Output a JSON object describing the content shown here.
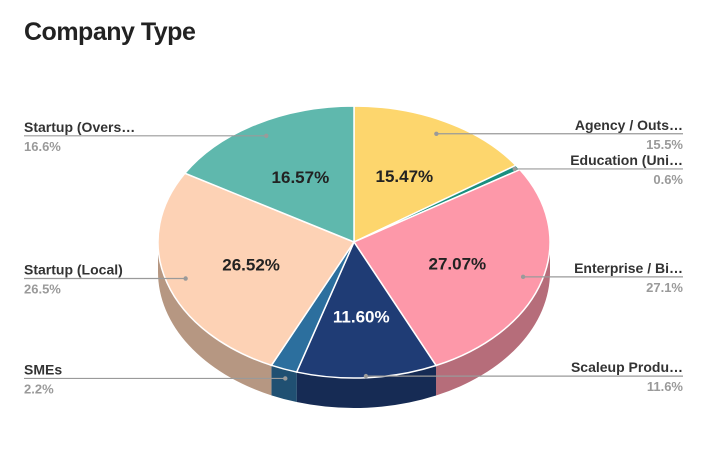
{
  "chart_data": {
    "type": "pie",
    "title": "Company Type",
    "slices": [
      {
        "label": "Agency / Outs…",
        "value": 15.47,
        "data_label": "15.47%",
        "legend_value": "15.5%",
        "color": "#fdd66d"
      },
      {
        "label": "Education (Uni…",
        "value": 0.6,
        "data_label": "",
        "legend_value": "0.6%",
        "color": "#1a8f7f"
      },
      {
        "label": "Enterprise / Bi…",
        "value": 27.07,
        "data_label": "27.07%",
        "legend_value": "27.1%",
        "color": "#fd98a9"
      },
      {
        "label": "Scaleup Produ…",
        "value": 11.6,
        "data_label": "11.60%",
        "legend_value": "11.6%",
        "color": "#1f3c75"
      },
      {
        "label": "SMEs",
        "value": 2.2,
        "data_label": "",
        "legend_value": "2.2%",
        "color": "#2c6f9e"
      },
      {
        "label": "Startup (Local)",
        "value": 26.52,
        "data_label": "26.52%",
        "legend_value": "26.5%",
        "color": "#fdd2b5"
      },
      {
        "label": "Startup (Overs…",
        "value": 16.57,
        "data_label": "16.57%",
        "legend_value": "16.6%",
        "color": "#5fb8ad"
      }
    ]
  }
}
